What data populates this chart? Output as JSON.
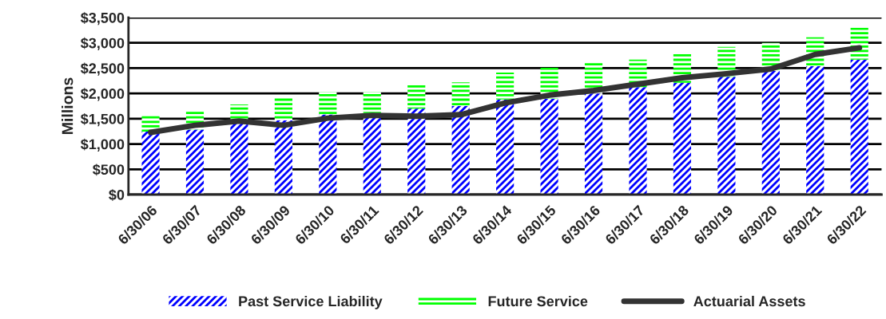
{
  "chart_data": {
    "type": "bar",
    "stacked": true,
    "ylabel": "Millions",
    "categories": [
      "6/30/06",
      "6/30/07",
      "6/30/08",
      "6/30/09",
      "6/30/10",
      "6/30/11",
      "6/30/12",
      "6/30/13",
      "6/30/14",
      "6/30/15",
      "6/30/16",
      "6/30/17",
      "6/30/18",
      "6/30/19",
      "6/30/20",
      "6/30/21",
      "6/30/22"
    ],
    "series": [
      {
        "name": "Past Service Liability",
        "color": "#0000ff",
        "values": [
          1246,
          1285,
          1426,
          1466,
          1584,
          1612,
          1697,
          1753,
          1879,
          1897,
          2000,
          2126,
          2213,
          2328,
          2443,
          2540,
          2667
        ]
      },
      {
        "name": "Future Service",
        "color": "#00ff00",
        "values": [
          344,
          372,
          355,
          445,
          451,
          423,
          462,
          465,
          535,
          609,
          603,
          541,
          580,
          592,
          557,
          569,
          632
        ]
      },
      {
        "name": "Actuarial Assets",
        "type": "line",
        "color": "#333333",
        "values": [
          1230,
          1370,
          1454,
          1370,
          1511,
          1567,
          1550,
          1580,
          1810,
          1966,
          2057,
          2184,
          2310,
          2391,
          2483,
          2770,
          2902
        ]
      }
    ],
    "ylim": [
      0,
      3500
    ],
    "yticks": [
      {
        "value": 0,
        "label": "$0"
      },
      {
        "value": 500,
        "label": "$500"
      },
      {
        "value": 1000,
        "label": "$1,000"
      },
      {
        "value": 1500,
        "label": "$1,500"
      },
      {
        "value": 2000,
        "label": "$2,000"
      },
      {
        "value": 2500,
        "label": "$2,500"
      },
      {
        "value": 3000,
        "label": "$3,000"
      },
      {
        "value": 3500,
        "label": "$3,500"
      }
    ],
    "grid": "y",
    "legend": "bottom",
    "marker": "none",
    "line_style": "solid"
  }
}
